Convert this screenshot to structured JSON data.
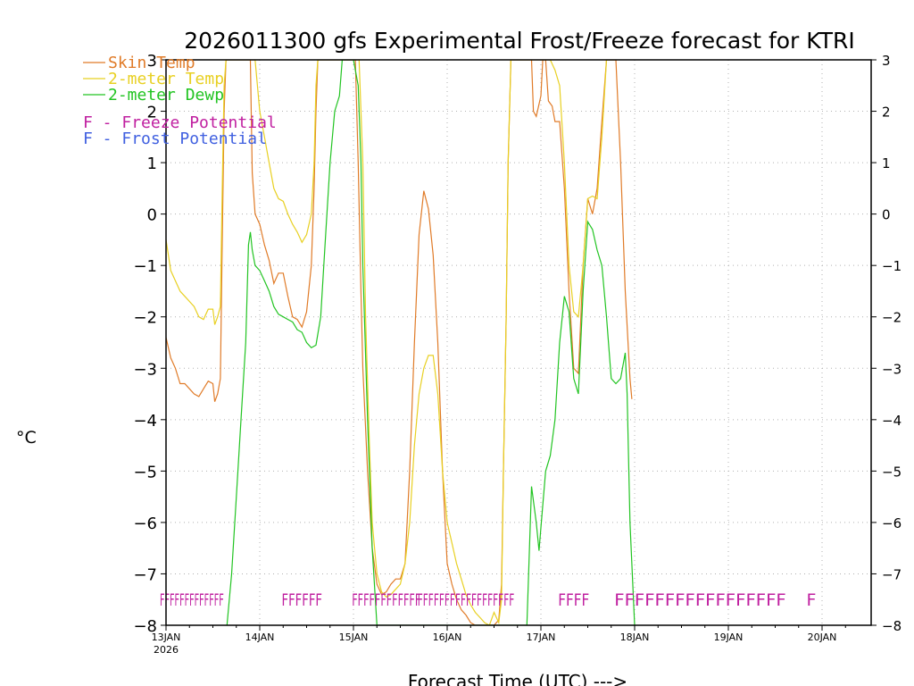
{
  "chart_data": {
    "type": "line",
    "title": "2026011300 gfs Experimental Frost/Freeze forecast for KTRI",
    "xlabel": "Forecast Time (UTC) --->",
    "ylabel": "°C",
    "xlim": [
      0,
      7.5
    ],
    "ylim": [
      -8,
      3
    ],
    "yticks": [
      -8,
      -7,
      -6,
      -5,
      -4,
      -3,
      -2,
      -1,
      0,
      1,
      2,
      3
    ],
    "xticks": [
      {
        "x": 0,
        "label": "13JAN",
        "sublabel": "2026"
      },
      {
        "x": 1,
        "label": "14JAN"
      },
      {
        "x": 2,
        "label": "15JAN"
      },
      {
        "x": 3,
        "label": "16JAN"
      },
      {
        "x": 4,
        "label": "17JAN"
      },
      {
        "x": 5,
        "label": "18JAN"
      },
      {
        "x": 6,
        "label": "19JAN"
      },
      {
        "x": 7,
        "label": "20JAN"
      }
    ],
    "grid": true,
    "legend": [
      {
        "label": "Skin Temp",
        "color": "#e07b28"
      },
      {
        "label": "2-meter Temp",
        "color": "#e8d022"
      },
      {
        "label": "2-meter Dewp",
        "color": "#22c422"
      }
    ],
    "potential_legend": [
      {
        "symbol": "F",
        "label": " - Freeze Potential",
        "color": "#c020a0"
      },
      {
        "symbol": "F",
        "label": " - Frost Potential",
        "color": "#4060e0"
      }
    ],
    "series": [
      {
        "name": "Skin Temp",
        "color": "#e07b28",
        "points": [
          [
            0.0,
            -2.4
          ],
          [
            0.05,
            -2.8
          ],
          [
            0.1,
            -3.0
          ],
          [
            0.15,
            -3.3
          ],
          [
            0.2,
            -3.3
          ],
          [
            0.25,
            -3.4
          ],
          [
            0.3,
            -3.5
          ],
          [
            0.35,
            -3.55
          ],
          [
            0.4,
            -3.4
          ],
          [
            0.45,
            -3.25
          ],
          [
            0.5,
            -3.3
          ],
          [
            0.52,
            -3.65
          ],
          [
            0.55,
            -3.5
          ],
          [
            0.58,
            -3.2
          ],
          [
            0.6,
            -0.5
          ],
          [
            0.62,
            2.0
          ],
          [
            0.64,
            3.0
          ],
          [
            0.9,
            3.0
          ],
          [
            0.92,
            0.8
          ],
          [
            0.95,
            0.0
          ],
          [
            1.0,
            -0.2
          ],
          [
            1.05,
            -0.6
          ],
          [
            1.1,
            -0.9
          ],
          [
            1.15,
            -1.35
          ],
          [
            1.2,
            -1.15
          ],
          [
            1.25,
            -1.15
          ],
          [
            1.3,
            -1.6
          ],
          [
            1.35,
            -2.0
          ],
          [
            1.4,
            -2.05
          ],
          [
            1.45,
            -2.2
          ],
          [
            1.5,
            -1.9
          ],
          [
            1.55,
            -1.0
          ],
          [
            1.58,
            0.5
          ],
          [
            1.6,
            2.0
          ],
          [
            1.62,
            3.0
          ],
          [
            2.02,
            3.0
          ],
          [
            2.05,
            1.0
          ],
          [
            2.08,
            -1.5
          ],
          [
            2.1,
            -3.0
          ],
          [
            2.15,
            -5.0
          ],
          [
            2.2,
            -6.5
          ],
          [
            2.25,
            -7.2
          ],
          [
            2.3,
            -7.4
          ],
          [
            2.35,
            -7.35
          ],
          [
            2.4,
            -7.2
          ],
          [
            2.45,
            -7.1
          ],
          [
            2.5,
            -7.1
          ],
          [
            2.55,
            -6.8
          ],
          [
            2.6,
            -5.0
          ],
          [
            2.65,
            -2.5
          ],
          [
            2.7,
            -0.4
          ],
          [
            2.75,
            0.45
          ],
          [
            2.8,
            0.1
          ],
          [
            2.85,
            -0.8
          ],
          [
            2.9,
            -2.5
          ],
          [
            2.95,
            -5.0
          ],
          [
            3.0,
            -6.8
          ],
          [
            3.05,
            -7.2
          ],
          [
            3.1,
            -7.5
          ],
          [
            3.15,
            -7.7
          ],
          [
            3.2,
            -7.8
          ],
          [
            3.25,
            -7.95
          ],
          [
            3.3,
            -8.0
          ],
          [
            3.5,
            -8.0
          ],
          [
            3.55,
            -7.9
          ],
          [
            3.58,
            -7.2
          ],
          [
            3.6,
            -5.0
          ],
          [
            3.63,
            -2.0
          ],
          [
            3.65,
            1.0
          ],
          [
            3.68,
            3.0
          ],
          [
            3.9,
            3.0
          ],
          [
            3.92,
            2.0
          ],
          [
            3.95,
            1.9
          ],
          [
            4.0,
            2.3
          ],
          [
            4.02,
            3.0
          ],
          [
            4.05,
            3.0
          ],
          [
            4.08,
            2.2
          ],
          [
            4.12,
            2.1
          ],
          [
            4.15,
            1.8
          ],
          [
            4.2,
            1.8
          ],
          [
            4.25,
            0.5
          ],
          [
            4.3,
            -1.5
          ],
          [
            4.35,
            -3.0
          ],
          [
            4.4,
            -3.1
          ],
          [
            4.45,
            -1.0
          ],
          [
            4.5,
            0.3
          ],
          [
            4.55,
            0.0
          ],
          [
            4.6,
            0.5
          ],
          [
            4.65,
            1.8
          ],
          [
            4.7,
            3.0
          ],
          [
            4.8,
            3.0
          ],
          [
            4.85,
            1.0
          ],
          [
            4.9,
            -1.5
          ],
          [
            4.95,
            -3.2
          ],
          [
            4.97,
            -3.6
          ]
        ]
      },
      {
        "name": "2-meter Temp",
        "color": "#e8d022",
        "points": [
          [
            0.0,
            -0.5
          ],
          [
            0.05,
            -1.1
          ],
          [
            0.1,
            -1.3
          ],
          [
            0.15,
            -1.5
          ],
          [
            0.2,
            -1.6
          ],
          [
            0.25,
            -1.7
          ],
          [
            0.3,
            -1.8
          ],
          [
            0.35,
            -2.0
          ],
          [
            0.4,
            -2.05
          ],
          [
            0.45,
            -1.85
          ],
          [
            0.5,
            -1.85
          ],
          [
            0.52,
            -2.15
          ],
          [
            0.55,
            -2.0
          ],
          [
            0.58,
            -1.8
          ],
          [
            0.6,
            0.5
          ],
          [
            0.62,
            2.5
          ],
          [
            0.64,
            3.0
          ],
          [
            0.95,
            3.0
          ],
          [
            1.0,
            2.0
          ],
          [
            1.05,
            1.5
          ],
          [
            1.1,
            1.0
          ],
          [
            1.15,
            0.5
          ],
          [
            1.2,
            0.3
          ],
          [
            1.25,
            0.25
          ],
          [
            1.3,
            0.0
          ],
          [
            1.35,
            -0.2
          ],
          [
            1.4,
            -0.35
          ],
          [
            1.45,
            -0.55
          ],
          [
            1.5,
            -0.4
          ],
          [
            1.55,
            0.0
          ],
          [
            1.58,
            1.0
          ],
          [
            1.6,
            2.5
          ],
          [
            1.62,
            3.0
          ],
          [
            2.06,
            3.0
          ],
          [
            2.1,
            1.0
          ],
          [
            2.13,
            -2.0
          ],
          [
            2.17,
            -4.5
          ],
          [
            2.2,
            -6.0
          ],
          [
            2.25,
            -7.0
          ],
          [
            2.3,
            -7.35
          ],
          [
            2.35,
            -7.45
          ],
          [
            2.4,
            -7.4
          ],
          [
            2.45,
            -7.3
          ],
          [
            2.5,
            -7.2
          ],
          [
            2.55,
            -6.8
          ],
          [
            2.6,
            -6.0
          ],
          [
            2.65,
            -4.5
          ],
          [
            2.7,
            -3.5
          ],
          [
            2.75,
            -3.0
          ],
          [
            2.8,
            -2.75
          ],
          [
            2.85,
            -2.75
          ],
          [
            2.9,
            -3.5
          ],
          [
            2.95,
            -5.0
          ],
          [
            3.0,
            -6.0
          ],
          [
            3.05,
            -6.4
          ],
          [
            3.1,
            -6.8
          ],
          [
            3.15,
            -7.1
          ],
          [
            3.2,
            -7.4
          ],
          [
            3.25,
            -7.6
          ],
          [
            3.3,
            -7.75
          ],
          [
            3.35,
            -7.85
          ],
          [
            3.4,
            -7.95
          ],
          [
            3.45,
            -8.0
          ],
          [
            3.5,
            -7.75
          ],
          [
            3.55,
            -7.95
          ],
          [
            3.58,
            -7.5
          ],
          [
            3.6,
            -5.0
          ],
          [
            3.63,
            -2.0
          ],
          [
            3.65,
            1.0
          ],
          [
            3.68,
            3.0
          ],
          [
            4.1,
            3.0
          ],
          [
            4.15,
            2.8
          ],
          [
            4.2,
            2.5
          ],
          [
            4.25,
            1.0
          ],
          [
            4.3,
            -1.0
          ],
          [
            4.35,
            -1.9
          ],
          [
            4.4,
            -2.0
          ],
          [
            4.45,
            -1.0
          ],
          [
            4.5,
            0.3
          ],
          [
            4.55,
            0.35
          ],
          [
            4.6,
            0.3
          ],
          [
            4.65,
            1.5
          ],
          [
            4.7,
            3.0
          ],
          [
            4.8,
            3.0
          ]
        ]
      },
      {
        "name": "2-meter Dewp",
        "color": "#22c422",
        "points": [
          [
            0.65,
            -8.0
          ],
          [
            0.7,
            -7.0
          ],
          [
            0.75,
            -5.5
          ],
          [
            0.8,
            -4.0
          ],
          [
            0.85,
            -2.5
          ],
          [
            0.88,
            -0.6
          ],
          [
            0.9,
            -0.35
          ],
          [
            0.92,
            -0.7
          ],
          [
            0.95,
            -1.0
          ],
          [
            1.0,
            -1.1
          ],
          [
            1.05,
            -1.3
          ],
          [
            1.1,
            -1.5
          ],
          [
            1.15,
            -1.8
          ],
          [
            1.2,
            -1.95
          ],
          [
            1.25,
            -2.0
          ],
          [
            1.3,
            -2.05
          ],
          [
            1.35,
            -2.1
          ],
          [
            1.4,
            -2.25
          ],
          [
            1.45,
            -2.3
          ],
          [
            1.5,
            -2.5
          ],
          [
            1.55,
            -2.6
          ],
          [
            1.6,
            -2.55
          ],
          [
            1.65,
            -2.0
          ],
          [
            1.7,
            -0.5
          ],
          [
            1.75,
            1.0
          ],
          [
            1.8,
            2.0
          ],
          [
            1.85,
            2.3
          ],
          [
            1.88,
            3.0
          ],
          [
            1.95,
            3.0
          ],
          [
            2.0,
            3.0
          ],
          [
            2.05,
            2.5
          ],
          [
            2.08,
            1.0
          ],
          [
            2.1,
            -1.0
          ],
          [
            2.15,
            -4.0
          ],
          [
            2.2,
            -6.5
          ],
          [
            2.25,
            -8.0
          ],
          [
            3.85,
            -8.0
          ],
          [
            3.9,
            -5.3
          ],
          [
            3.95,
            -6.0
          ],
          [
            3.98,
            -6.55
          ],
          [
            4.0,
            -6.1
          ],
          [
            4.05,
            -5.0
          ],
          [
            4.1,
            -4.7
          ],
          [
            4.15,
            -4.0
          ],
          [
            4.2,
            -2.5
          ],
          [
            4.25,
            -1.6
          ],
          [
            4.3,
            -1.9
          ],
          [
            4.35,
            -3.2
          ],
          [
            4.4,
            -3.5
          ],
          [
            4.45,
            -1.5
          ],
          [
            4.5,
            -0.15
          ],
          [
            4.55,
            -0.3
          ],
          [
            4.6,
            -0.7
          ],
          [
            4.65,
            -1.0
          ],
          [
            4.7,
            -2.0
          ],
          [
            4.75,
            -3.2
          ],
          [
            4.8,
            -3.3
          ],
          [
            4.85,
            -3.2
          ],
          [
            4.9,
            -2.7
          ],
          [
            4.92,
            -3.5
          ],
          [
            4.95,
            -6.0
          ],
          [
            5.0,
            -8.0
          ]
        ]
      }
    ],
    "freeze_potential_marks": [
      {
        "x": [
          0.0,
          0.55
        ],
        "text": "FFFFFFFFFFFFF",
        "color": "#c020a0"
      },
      {
        "x": [
          1.3,
          1.6
        ],
        "text": "FFFFFF",
        "color": "#c020a0"
      },
      {
        "x": [
          2.05,
          2.65
        ],
        "text": "FFFFFFFFFFFF",
        "color": "#c020a0"
      },
      {
        "x": [
          2.75,
          3.65
        ],
        "text": "FFFFFFFFFFFFFFFFFF",
        "color": "#c020a0"
      },
      {
        "x": [
          4.25,
          4.45
        ],
        "text": "FFFF",
        "color": "#c020a0"
      },
      {
        "x": [
          4.85,
          6.55
        ],
        "text": "FFFFFFFFFFFFFFFFF",
        "color": "#c020a0"
      },
      {
        "x": [
          6.9,
          6.95
        ],
        "text": "F",
        "color": "#c020a0"
      }
    ]
  }
}
